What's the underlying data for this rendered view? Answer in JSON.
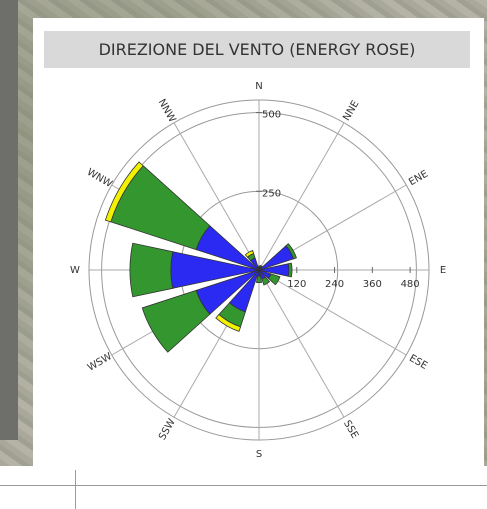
{
  "chart_data": {
    "type": "rose",
    "title": "DIREZIONE DEL VENTO (ENERGY ROSE)",
    "categories": [
      "N",
      "NNE",
      "ENE",
      "E",
      "ESE",
      "SSE",
      "S",
      "SSW",
      "WSW",
      "W",
      "WNW",
      "NNW"
    ],
    "series": [
      {
        "color": "#2a2af2",
        "values": [
          8,
          10,
          115,
          95,
          40,
          30,
          20,
          140,
          210,
          280,
          210,
          40
        ]
      },
      {
        "color": "#33962e",
        "values": [
          5,
          5,
          10,
          10,
          30,
          20,
          20,
          50,
          180,
          130,
          285,
          15
        ]
      },
      {
        "color": "#f2f200",
        "values": [
          0,
          0,
          0,
          0,
          0,
          0,
          0,
          15,
          0,
          0,
          18,
          10
        ]
      }
    ],
    "rlim": [
      0,
      540
    ],
    "yticks": [
      250,
      500
    ],
    "xticks": [
      120,
      240,
      360,
      480
    ],
    "grid": true
  }
}
